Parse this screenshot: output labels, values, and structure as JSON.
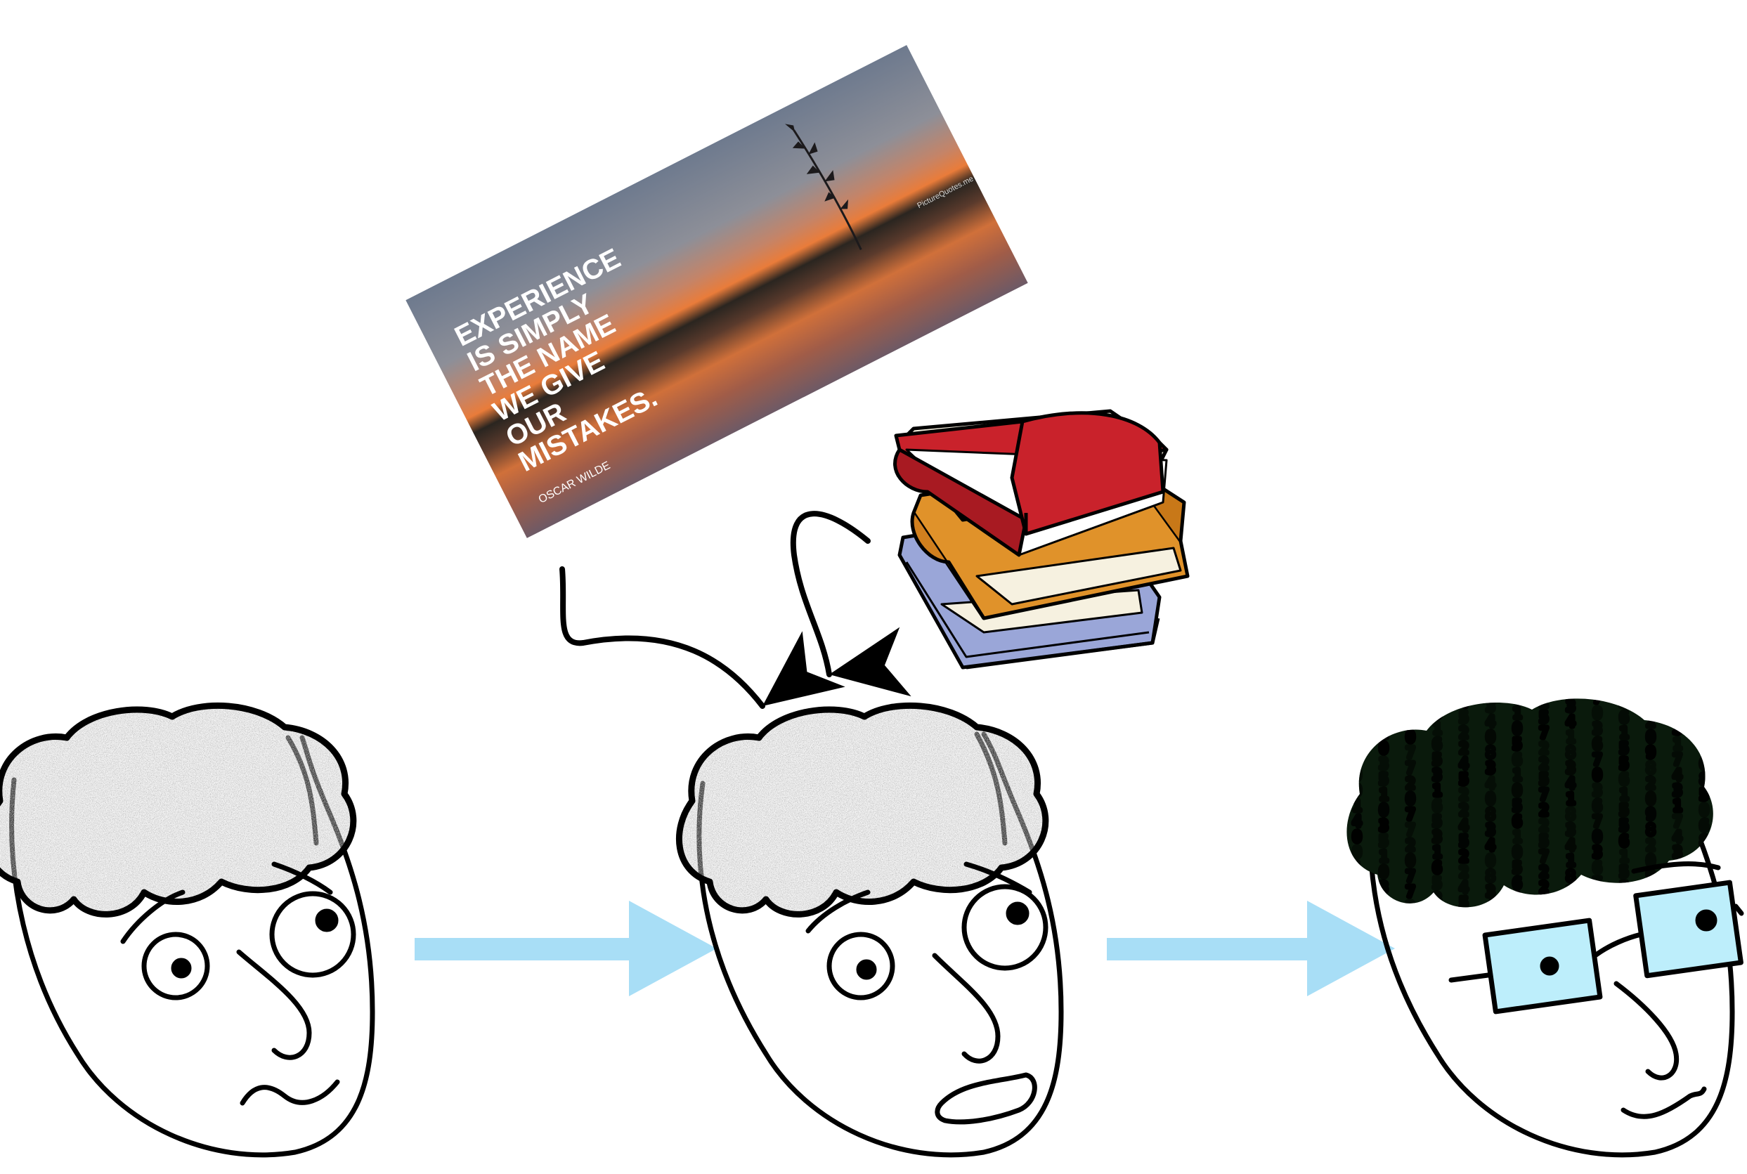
{
  "quote_card": {
    "lines": [
      "EXPERIENCE",
      "IS SIMPLY",
      "THE NAME",
      "WE GIVE",
      "OUR",
      "MISTAKES."
    ],
    "author": "OSCAR WILDE",
    "watermark": "PictureQuotes.me"
  },
  "colors": {
    "progress_arrow": "#a8def6",
    "stroke": "#000000",
    "glasses_lens": "#bdeefb",
    "brain_gray": "#8c8c8c",
    "matrix_green": "#2ee84a",
    "book_red": "#c9222b",
    "book_orange": "#e0922a",
    "book_blue": "#9aa6d8"
  },
  "icons": {
    "head_1": "confused-head-icon",
    "head_2": "worried-head-icon",
    "head_3": "glasses-head-icon",
    "books": "book-stack-icon"
  },
  "matrix_columns": [
    "4001",
    "0351",
    "0772",
    "3165",
    "4522",
    "8340",
    "0561",
    "5722",
    "3418",
    "6703",
    "1556",
    "2098",
    "7431",
    "0685"
  ]
}
